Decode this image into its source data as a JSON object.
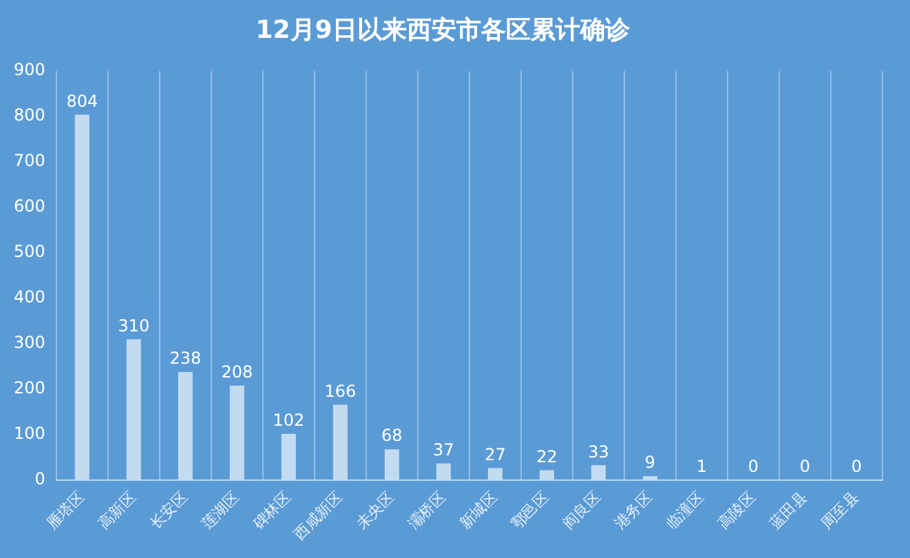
{
  "chart_data": {
    "type": "bar",
    "title": "12月9日以来西安市各区累计确诊",
    "categories": [
      "雁塔区",
      "高新区",
      "长安区",
      "莲湖区",
      "碑林区",
      "西咸新区",
      "未央区",
      "灞桥区",
      "新城区",
      "鄠邑区",
      "阎良区",
      "港务区",
      "临潼区",
      "高陵区",
      "蓝田县",
      "周至县"
    ],
    "values": [
      804,
      310,
      238,
      208,
      102,
      166,
      68,
      37,
      27,
      22,
      33,
      9,
      1,
      0,
      0,
      0
    ],
    "color": "#c3dbf1",
    "ylim": [
      0,
      900
    ],
    "yticks": [
      0,
      100,
      200,
      300,
      400,
      500,
      600,
      700,
      800,
      900
    ],
    "grid": "x",
    "data_labels": true
  }
}
